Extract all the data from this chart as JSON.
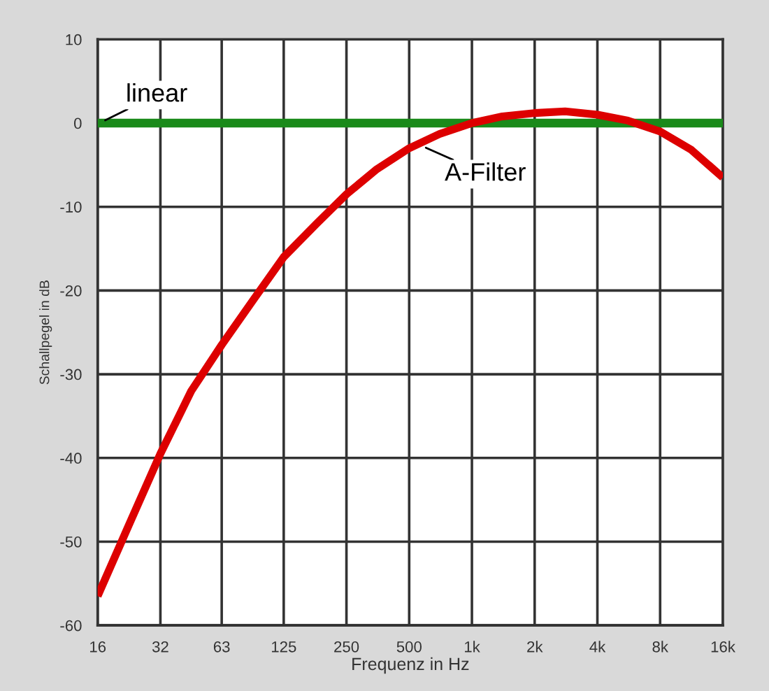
{
  "chart_data": {
    "type": "line",
    "xlabel": "Frequenz in Hz",
    "ylabel": "Schallpegel in dB",
    "log": "x",
    "grid": true,
    "legend": false,
    "marker": "none",
    "line_style": "solid",
    "xlim": [
      16,
      16000
    ],
    "ylim": [
      -60,
      10
    ],
    "xticks": [
      16,
      32,
      63,
      125,
      250,
      500,
      {
        "value": 1000,
        "label": "1k"
      },
      {
        "value": 2000,
        "label": "2k"
      },
      {
        "value": 4000,
        "label": "4k"
      },
      {
        "value": 8000,
        "label": "8k"
      },
      {
        "value": 16000,
        "label": "16k"
      }
    ],
    "yticks": [
      -60,
      -50,
      -40,
      -30,
      -20,
      -10,
      0,
      10
    ],
    "series": [
      {
        "name": "linear",
        "color": "#1a8a1a",
        "x": [
          16,
          16000
        ],
        "values": [
          0,
          0
        ]
      },
      {
        "name": "A-Filter",
        "color": "#dd0000",
        "x": [
          16,
          22.6,
          32,
          45,
          63,
          90,
          125,
          180,
          250,
          350,
          500,
          700,
          1000,
          1400,
          2000,
          2800,
          4000,
          5600,
          8000,
          11300,
          16000
        ],
        "values": [
          -56.5,
          -48,
          -39.5,
          -32,
          -26.5,
          -21,
          -16,
          -12,
          -8.5,
          -5.5,
          -3,
          -1.3,
          0,
          0.8,
          1.2,
          1.4,
          1,
          0.3,
          -1,
          -3.2,
          -6.5
        ]
      }
    ]
  }
}
